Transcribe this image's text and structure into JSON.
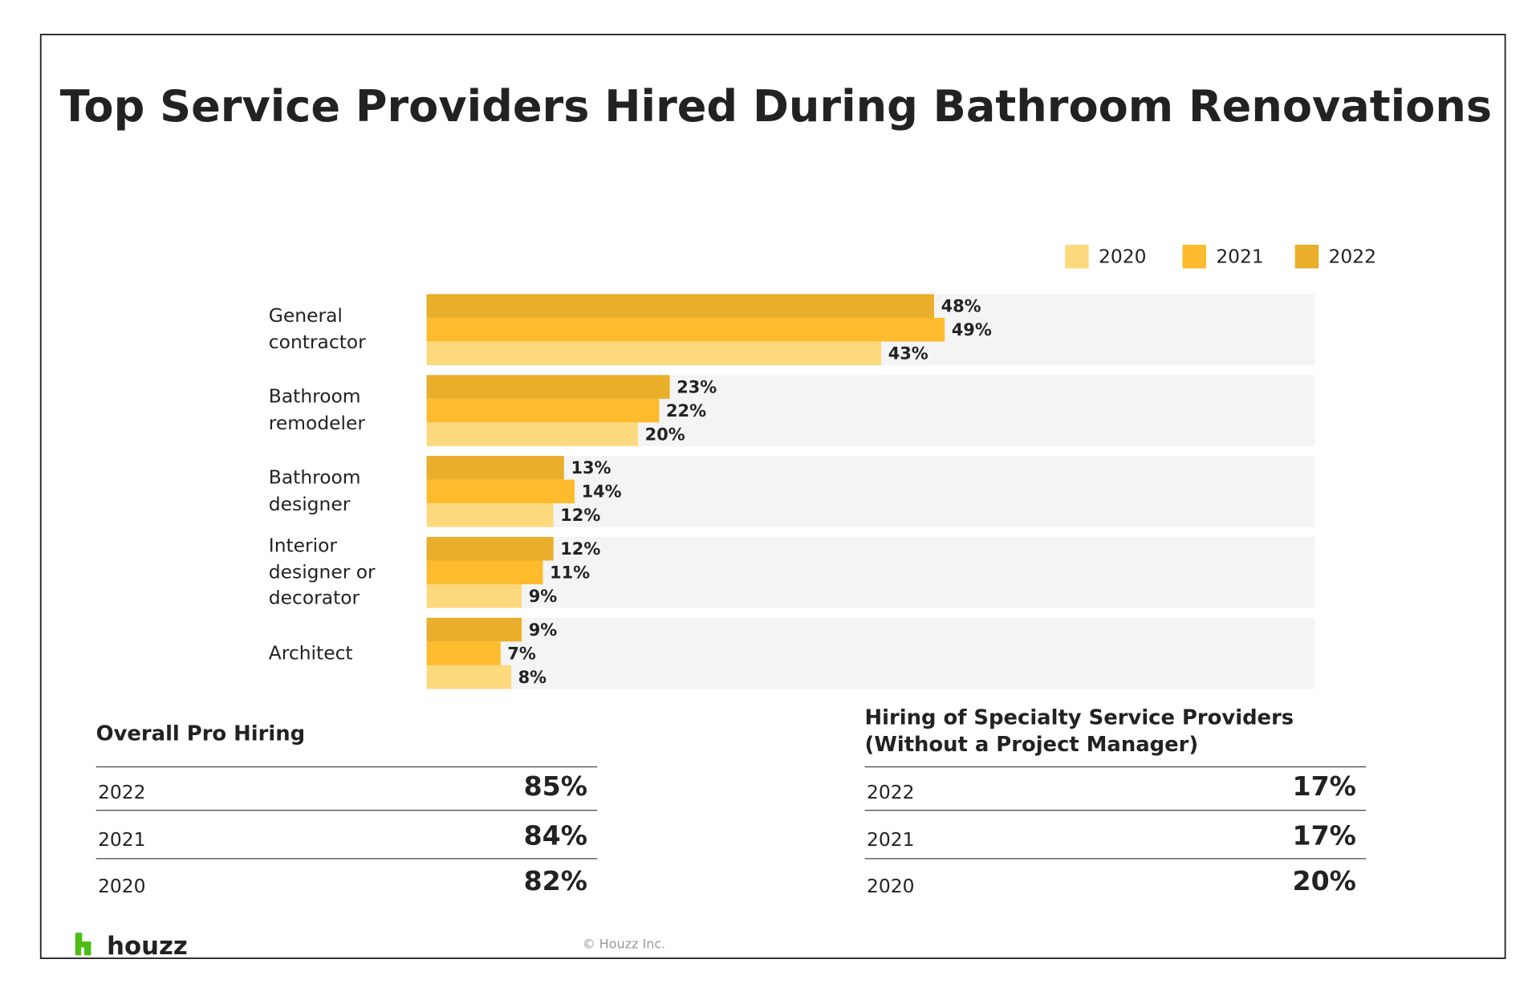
{
  "chart_data": {
    "type": "bar",
    "orientation": "horizontal",
    "title": "Top Service Providers Hired During Bathroom Renovations",
    "categories": [
      "General contractor",
      "Bathroom remodeler",
      "Bathroom designer",
      "Interior designer or decorator",
      "Architect"
    ],
    "series": [
      {
        "name": "2020",
        "color": "#fdd97e",
        "values": [
          43,
          20,
          12,
          9,
          8
        ],
        "value_labels": [
          "43%",
          "20%",
          "12%",
          "9%",
          "8%"
        ]
      },
      {
        "name": "2021",
        "color": "#fdbb2d",
        "values": [
          49,
          22,
          14,
          11,
          7
        ],
        "value_labels": [
          "49%",
          "22%",
          "14%",
          "11%",
          "7%"
        ]
      },
      {
        "name": "2022",
        "color": "#e9ae2a",
        "values": [
          48,
          23,
          13,
          12,
          9
        ],
        "value_labels": [
          "48%",
          "23%",
          "13%",
          "12%",
          "9%"
        ]
      }
    ],
    "xlim": [
      0,
      84
    ],
    "legend": "top-right"
  },
  "tables": [
    {
      "title": "Overall Pro Hiring",
      "rows": [
        [
          "2022",
          "85%"
        ],
        [
          "2021",
          "84%"
        ],
        [
          "2020",
          "82%"
        ]
      ]
    },
    {
      "title": "Hiring of Specialty Service Providers (Without a Project Manager)",
      "rows": [
        [
          "2022",
          "17%"
        ],
        [
          "2021",
          "17%"
        ],
        [
          "2020",
          "20%"
        ]
      ]
    }
  ],
  "footer": {
    "logo": "houzz",
    "copyright": "© Houzz Inc."
  }
}
